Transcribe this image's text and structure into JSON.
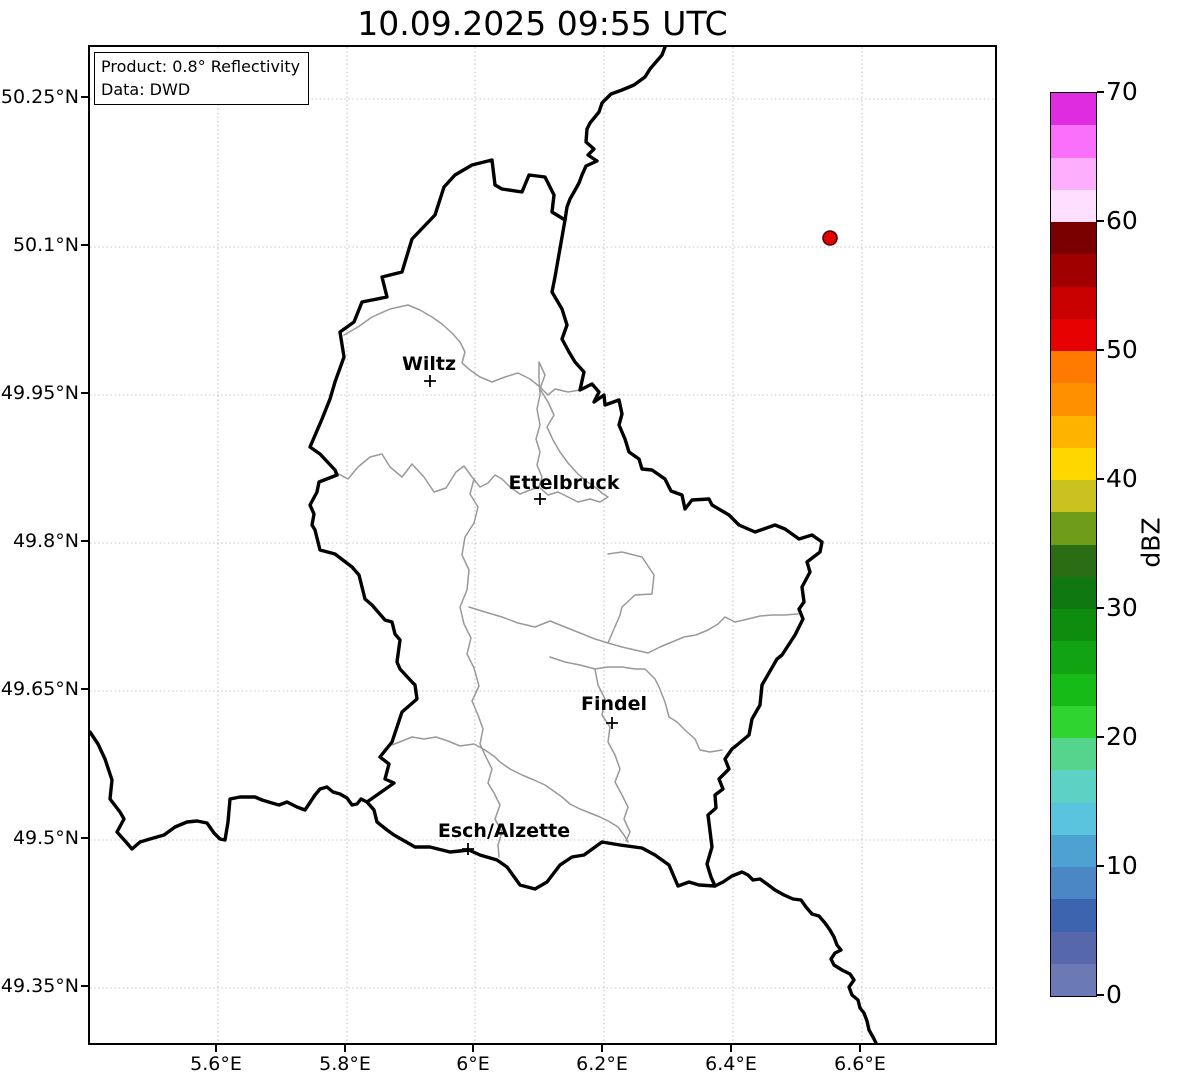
{
  "title": "10.09.2025 09:55 UTC",
  "info_box": {
    "line1": "Product: 0.8° Reflectivity",
    "line2": "Data: DWD"
  },
  "axes": {
    "lat_ticks": [
      "50.25°N",
      "50.1°N",
      "49.95°N",
      "49.8°N",
      "49.65°N",
      "49.5°N",
      "49.35°N"
    ],
    "lon_ticks": [
      "5.6°E",
      "5.8°E",
      "6°E",
      "6.2°E",
      "6.4°E",
      "6.6°E"
    ]
  },
  "cities": [
    {
      "name": "Wiltz"
    },
    {
      "name": "Ettelbruck"
    },
    {
      "name": "Findel"
    },
    {
      "name": "Esch/Alzette"
    }
  ],
  "radar_marker": {
    "fill": "#e10000",
    "edge": "#550000"
  },
  "map_colors": {
    "country_border": "#000000",
    "canton_border": "#999999",
    "gridline": "#c4c4c4"
  },
  "colorbar": {
    "label": "dBZ",
    "unit_min": 0,
    "unit_max": 70,
    "segment_step": 2.5,
    "tick_labels": [
      "70",
      "60",
      "50",
      "40",
      "30",
      "20",
      "10",
      "0"
    ],
    "colors_bottom_to_top": [
      "#6b79b4",
      "#5668ab",
      "#3d64ae",
      "#4a87c4",
      "#4da2d2",
      "#5ac4de",
      "#5bd2c4",
      "#55d48d",
      "#30d430",
      "#17bb17",
      "#12a312",
      "#0e8c0e",
      "#117811",
      "#2a6d14",
      "#6f9c19",
      "#c9c21e",
      "#ffd800",
      "#ffb400",
      "#ff9000",
      "#ff7b00",
      "#e60000",
      "#c80000",
      "#a00000",
      "#7a0000",
      "#ffdfff",
      "#fdaefd",
      "#fa70fa",
      "#e02ce0"
    ]
  }
}
